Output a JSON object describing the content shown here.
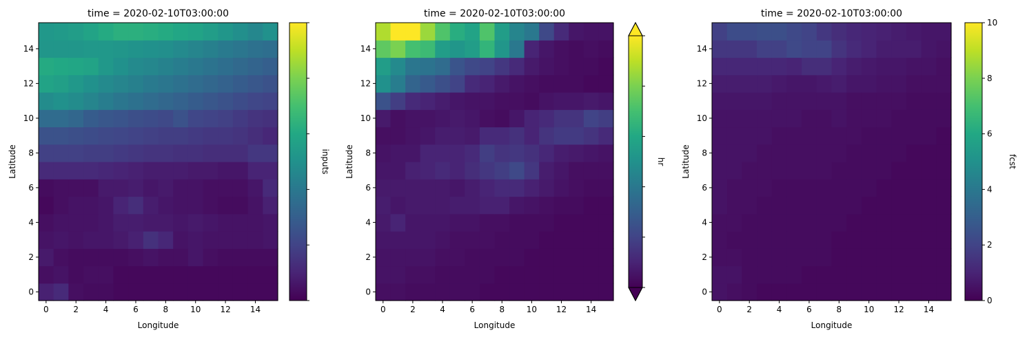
{
  "chart_data": [
    {
      "type": "heatmap",
      "title": "time = 2020-02-10T03:00:00",
      "xlabel": "Longitude",
      "ylabel": "Latitude",
      "colorbar_label": "inputs",
      "colormap": "viridis",
      "xlim": [
        -0.5,
        15.5
      ],
      "ylim": [
        -0.5,
        15.5
      ],
      "xticks": [
        0,
        2,
        4,
        6,
        8,
        10,
        12,
        14
      ],
      "yticks": [
        0,
        2,
        4,
        6,
        8,
        10,
        12,
        14
      ],
      "vmin": 0,
      "vmax": 1,
      "colorbar_ticks": [
        0.0,
        0.2,
        0.4,
        0.6,
        0.8,
        1.0
      ],
      "colorbar_ticklabels": [],
      "extend": "neither",
      "values": [
        [
          0.09,
          0.12,
          0.04,
          0.03,
          0.03,
          0.02,
          0.02,
          0.02,
          0.02,
          0.02,
          0.02,
          0.02,
          0.02,
          0.02,
          0.02,
          0.02
        ],
        [
          0.04,
          0.05,
          0.03,
          0.04,
          0.04,
          0.02,
          0.02,
          0.02,
          0.02,
          0.02,
          0.02,
          0.02,
          0.02,
          0.02,
          0.02,
          0.02
        ],
        [
          0.07,
          0.04,
          0.03,
          0.03,
          0.03,
          0.03,
          0.04,
          0.05,
          0.04,
          0.04,
          0.06,
          0.04,
          0.03,
          0.03,
          0.03,
          0.03
        ],
        [
          0.05,
          0.06,
          0.05,
          0.06,
          0.06,
          0.07,
          0.09,
          0.14,
          0.11,
          0.05,
          0.06,
          0.05,
          0.05,
          0.05,
          0.05,
          0.06
        ],
        [
          0.04,
          0.05,
          0.05,
          0.05,
          0.06,
          0.08,
          0.08,
          0.07,
          0.07,
          0.06,
          0.07,
          0.06,
          0.05,
          0.05,
          0.05,
          0.06
        ],
        [
          0.02,
          0.04,
          0.05,
          0.05,
          0.06,
          0.1,
          0.13,
          0.08,
          0.06,
          0.05,
          0.05,
          0.04,
          0.03,
          0.03,
          0.05,
          0.09
        ],
        [
          0.03,
          0.04,
          0.04,
          0.04,
          0.07,
          0.07,
          0.08,
          0.06,
          0.07,
          0.05,
          0.05,
          0.04,
          0.04,
          0.04,
          0.06,
          0.12
        ],
        [
          0.12,
          0.12,
          0.12,
          0.12,
          0.11,
          0.1,
          0.09,
          0.08,
          0.08,
          0.08,
          0.07,
          0.07,
          0.06,
          0.06,
          0.1,
          0.1
        ],
        [
          0.19,
          0.19,
          0.19,
          0.18,
          0.18,
          0.17,
          0.16,
          0.15,
          0.15,
          0.14,
          0.14,
          0.13,
          0.13,
          0.13,
          0.16,
          0.16
        ],
        [
          0.25,
          0.25,
          0.24,
          0.23,
          0.22,
          0.21,
          0.2,
          0.19,
          0.18,
          0.18,
          0.17,
          0.16,
          0.16,
          0.15,
          0.13,
          0.11
        ],
        [
          0.35,
          0.35,
          0.33,
          0.29,
          0.27,
          0.26,
          0.24,
          0.23,
          0.22,
          0.25,
          0.21,
          0.2,
          0.19,
          0.17,
          0.15,
          0.14
        ],
        [
          0.48,
          0.5,
          0.48,
          0.45,
          0.42,
          0.39,
          0.37,
          0.35,
          0.33,
          0.31,
          0.29,
          0.27,
          0.25,
          0.23,
          0.21,
          0.2
        ],
        [
          0.58,
          0.56,
          0.53,
          0.5,
          0.47,
          0.45,
          0.43,
          0.41,
          0.39,
          0.37,
          0.35,
          0.33,
          0.31,
          0.29,
          0.27,
          0.25
        ],
        [
          0.61,
          0.6,
          0.59,
          0.58,
          0.53,
          0.5,
          0.47,
          0.46,
          0.44,
          0.42,
          0.4,
          0.38,
          0.36,
          0.34,
          0.32,
          0.3
        ],
        [
          0.52,
          0.52,
          0.52,
          0.53,
          0.53,
          0.52,
          0.51,
          0.5,
          0.49,
          0.47,
          0.45,
          0.43,
          0.41,
          0.39,
          0.37,
          0.36
        ],
        [
          0.53,
          0.54,
          0.55,
          0.58,
          0.61,
          0.63,
          0.63,
          0.62,
          0.61,
          0.59,
          0.58,
          0.55,
          0.52,
          0.49,
          0.46,
          0.5
        ]
      ]
    },
    {
      "type": "heatmap",
      "title": "time = 2020-02-10T03:00:00",
      "xlabel": "Longitude",
      "ylabel": "Latitude",
      "colorbar_label": "hr",
      "colormap": "viridis",
      "xlim": [
        -0.5,
        15.5
      ],
      "ylim": [
        -0.5,
        15.5
      ],
      "xticks": [
        0,
        2,
        4,
        6,
        8,
        10,
        12,
        14
      ],
      "yticks": [
        0,
        2,
        4,
        6,
        8,
        10,
        12,
        14
      ],
      "vmin": 0,
      "vmax": 1,
      "colorbar_ticks": [
        0.0,
        0.2,
        0.4,
        0.6,
        0.8,
        1.0
      ],
      "colorbar_ticklabels": [],
      "extend": "both",
      "values": [
        [
          0.04,
          0.04,
          0.03,
          0.03,
          0.03,
          0.03,
          0.03,
          0.02,
          0.02,
          0.02,
          0.02,
          0.02,
          0.02,
          0.02,
          0.02,
          0.02
        ],
        [
          0.05,
          0.05,
          0.04,
          0.04,
          0.03,
          0.03,
          0.03,
          0.03,
          0.02,
          0.02,
          0.02,
          0.02,
          0.02,
          0.02,
          0.02,
          0.02
        ],
        [
          0.05,
          0.05,
          0.05,
          0.05,
          0.04,
          0.04,
          0.03,
          0.03,
          0.03,
          0.03,
          0.02,
          0.02,
          0.02,
          0.02,
          0.02,
          0.02
        ],
        [
          0.06,
          0.06,
          0.06,
          0.06,
          0.05,
          0.04,
          0.04,
          0.04,
          0.03,
          0.03,
          0.03,
          0.02,
          0.02,
          0.02,
          0.02,
          0.02
        ],
        [
          0.07,
          0.1,
          0.06,
          0.06,
          0.06,
          0.05,
          0.05,
          0.04,
          0.04,
          0.03,
          0.03,
          0.03,
          0.02,
          0.02,
          0.02,
          0.02
        ],
        [
          0.08,
          0.06,
          0.07,
          0.07,
          0.07,
          0.08,
          0.08,
          0.09,
          0.09,
          0.06,
          0.05,
          0.04,
          0.03,
          0.03,
          0.02,
          0.02
        ],
        [
          0.07,
          0.07,
          0.07,
          0.07,
          0.07,
          0.06,
          0.08,
          0.1,
          0.12,
          0.12,
          0.09,
          0.07,
          0.05,
          0.04,
          0.03,
          0.03
        ],
        [
          0.06,
          0.06,
          0.09,
          0.1,
          0.12,
          0.1,
          0.13,
          0.16,
          0.18,
          0.22,
          0.16,
          0.08,
          0.06,
          0.04,
          0.04,
          0.04
        ],
        [
          0.05,
          0.06,
          0.06,
          0.1,
          0.1,
          0.1,
          0.12,
          0.18,
          0.15,
          0.16,
          0.14,
          0.11,
          0.08,
          0.07,
          0.06,
          0.05
        ],
        [
          0.04,
          0.04,
          0.05,
          0.06,
          0.08,
          0.08,
          0.07,
          0.12,
          0.12,
          0.14,
          0.1,
          0.15,
          0.17,
          0.17,
          0.15,
          0.12
        ],
        [
          0.07,
          0.04,
          0.05,
          0.05,
          0.06,
          0.07,
          0.06,
          0.04,
          0.03,
          0.06,
          0.1,
          0.12,
          0.15,
          0.15,
          0.2,
          0.18
        ],
        [
          0.25,
          0.18,
          0.12,
          0.1,
          0.08,
          0.06,
          0.05,
          0.05,
          0.04,
          0.04,
          0.03,
          0.05,
          0.06,
          0.06,
          0.07,
          0.06
        ],
        [
          0.5,
          0.42,
          0.32,
          0.28,
          0.24,
          0.2,
          0.12,
          0.1,
          0.07,
          0.05,
          0.04,
          0.03,
          0.03,
          0.03,
          0.02,
          0.02
        ],
        [
          0.55,
          0.47,
          0.39,
          0.38,
          0.35,
          0.26,
          0.22,
          0.2,
          0.16,
          0.12,
          0.07,
          0.05,
          0.04,
          0.03,
          0.03,
          0.02
        ],
        [
          0.75,
          0.8,
          0.7,
          0.68,
          0.55,
          0.52,
          0.55,
          0.65,
          0.52,
          0.4,
          0.1,
          0.06,
          0.04,
          0.03,
          0.04,
          0.03
        ],
        [
          0.88,
          1.0,
          1.0,
          0.85,
          0.72,
          0.62,
          0.58,
          0.72,
          0.55,
          0.45,
          0.4,
          0.22,
          0.12,
          0.06,
          0.05,
          0.05
        ]
      ]
    },
    {
      "type": "heatmap",
      "title": "time = 2020-02-10T03:00:00",
      "xlabel": "Longitude",
      "ylabel": "Latitude",
      "colorbar_label": "fcst",
      "colormap": "viridis",
      "xlim": [
        -0.5,
        15.5
      ],
      "ylim": [
        -0.5,
        15.5
      ],
      "xticks": [
        0,
        2,
        4,
        6,
        8,
        10,
        12,
        14
      ],
      "yticks": [
        0,
        2,
        4,
        6,
        8,
        10,
        12,
        14
      ],
      "vmin": 0,
      "vmax": 10,
      "colorbar_ticks": [
        0,
        2,
        4,
        6,
        8,
        10
      ],
      "colorbar_ticklabels": [
        "0",
        "2",
        "4",
        "6",
        "8",
        "10"
      ],
      "extend": "neither",
      "values": [
        [
          0.5,
          0.4,
          0.3,
          0.2,
          0.2,
          0.2,
          0.2,
          0.2,
          0.2,
          0.2,
          0.2,
          0.2,
          0.2,
          0.2,
          0.2,
          0.2
        ],
        [
          0.5,
          0.5,
          0.3,
          0.3,
          0.3,
          0.3,
          0.2,
          0.2,
          0.2,
          0.2,
          0.2,
          0.2,
          0.2,
          0.2,
          0.2,
          0.2
        ],
        [
          0.4,
          0.4,
          0.3,
          0.3,
          0.3,
          0.3,
          0.3,
          0.3,
          0.2,
          0.2,
          0.2,
          0.2,
          0.2,
          0.2,
          0.2,
          0.2
        ],
        [
          0.4,
          0.3,
          0.3,
          0.3,
          0.3,
          0.3,
          0.3,
          0.3,
          0.2,
          0.2,
          0.2,
          0.2,
          0.2,
          0.2,
          0.2,
          0.2
        ],
        [
          0.4,
          0.4,
          0.3,
          0.3,
          0.3,
          0.3,
          0.3,
          0.3,
          0.3,
          0.2,
          0.2,
          0.2,
          0.2,
          0.2,
          0.2,
          0.2
        ],
        [
          0.5,
          0.4,
          0.4,
          0.3,
          0.3,
          0.3,
          0.3,
          0.3,
          0.3,
          0.3,
          0.2,
          0.2,
          0.2,
          0.2,
          0.2,
          0.2
        ],
        [
          0.5,
          0.4,
          0.4,
          0.4,
          0.3,
          0.3,
          0.3,
          0.3,
          0.3,
          0.3,
          0.3,
          0.2,
          0.2,
          0.2,
          0.2,
          0.2
        ],
        [
          0.5,
          0.5,
          0.4,
          0.4,
          0.4,
          0.4,
          0.4,
          0.4,
          0.3,
          0.3,
          0.3,
          0.3,
          0.2,
          0.2,
          0.2,
          0.2
        ],
        [
          0.5,
          0.5,
          0.5,
          0.4,
          0.4,
          0.4,
          0.4,
          0.4,
          0.4,
          0.3,
          0.3,
          0.3,
          0.3,
          0.2,
          0.2,
          0.2
        ],
        [
          0.5,
          0.5,
          0.5,
          0.5,
          0.4,
          0.4,
          0.4,
          0.4,
          0.4,
          0.4,
          0.3,
          0.3,
          0.3,
          0.3,
          0.3,
          0.2
        ],
        [
          0.5,
          0.5,
          0.5,
          0.5,
          0.5,
          0.5,
          0.4,
          0.4,
          0.5,
          0.4,
          0.4,
          0.4,
          0.3,
          0.3,
          0.3,
          0.3
        ],
        [
          0.6,
          0.6,
          0.6,
          0.6,
          0.5,
          0.5,
          0.5,
          0.5,
          0.5,
          0.4,
          0.4,
          0.4,
          0.4,
          0.3,
          0.3,
          0.3
        ],
        [
          0.8,
          0.8,
          0.8,
          0.8,
          0.7,
          0.6,
          0.6,
          0.7,
          0.8,
          0.6,
          0.6,
          0.5,
          0.5,
          0.4,
          0.4,
          0.4
        ],
        [
          1.1,
          1.1,
          1.1,
          1.1,
          1.1,
          1.0,
          1.3,
          1.3,
          1.0,
          0.8,
          0.7,
          0.6,
          0.6,
          0.5,
          0.5,
          0.4
        ],
        [
          1.6,
          1.6,
          1.6,
          1.9,
          1.9,
          2.2,
          2.0,
          2.0,
          1.5,
          1.2,
          1.0,
          0.8,
          0.8,
          0.8,
          0.6,
          0.5
        ],
        [
          1.9,
          2.3,
          2.3,
          2.4,
          2.4,
          2.2,
          2.0,
          1.6,
          1.3,
          1.1,
          1.0,
          0.9,
          0.8,
          0.7,
          0.6,
          0.6
        ]
      ]
    }
  ]
}
